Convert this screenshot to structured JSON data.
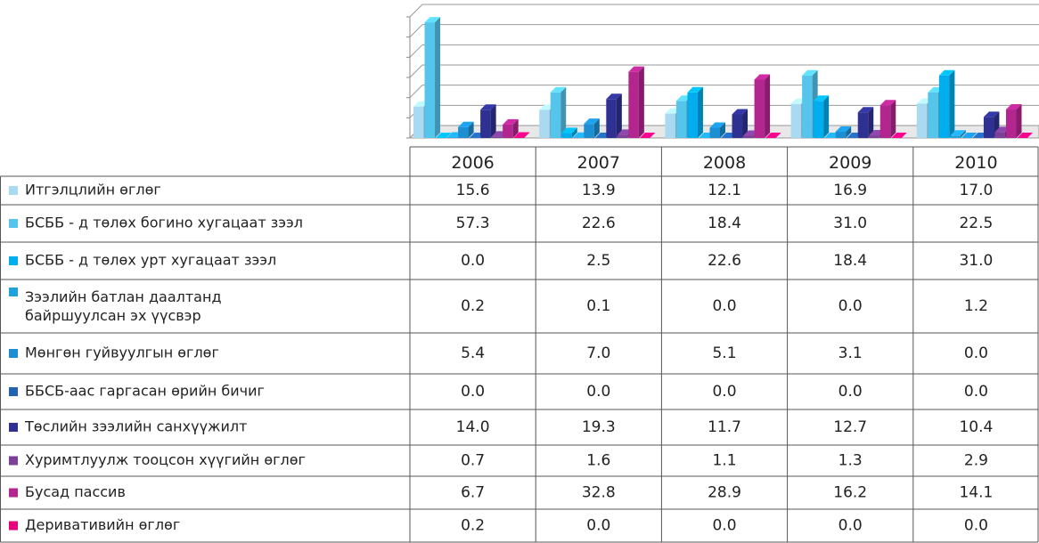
{
  "chart_data": {
    "type": "bar",
    "categories": [
      "2006",
      "2007",
      "2008",
      "2009",
      "2010"
    ],
    "ylim": [
      0,
      60
    ],
    "yticks": [
      0,
      10,
      20,
      30,
      40,
      50,
      60
    ],
    "grid": true,
    "series": [
      {
        "name": "Итгэлцлийн өглөг",
        "color": "#a9daf2",
        "values": [
          15.6,
          13.9,
          12.1,
          16.9,
          17.0
        ],
        "value_labels": [
          "15.6",
          "13.9",
          "12.1",
          "16.9",
          "17.0"
        ]
      },
      {
        "name": "БСББ - д төлөх богино хугацаат зээл",
        "color": "#55c5ec",
        "values": [
          57.3,
          22.6,
          18.4,
          31.0,
          22.5
        ],
        "value_labels": [
          "57.3",
          "22.6",
          "18.4",
          "31.0",
          "22.5"
        ]
      },
      {
        "name": "БСББ - д төлөх урт хугацаат зээл",
        "color": "#00aeef",
        "values": [
          0.0,
          2.5,
          22.6,
          18.4,
          31.0
        ],
        "value_labels": [
          "0.0",
          "2.5",
          "22.6",
          "18.4",
          "31.0"
        ]
      },
      {
        "name": "Зээлийн батлан даалтанд байршуулсан эх үүсвэр",
        "color": "#1ea1dc",
        "values": [
          0.2,
          0.1,
          0.0,
          0.0,
          1.2
        ],
        "value_labels": [
          "0.2",
          "0.1",
          "0.0",
          "0.0",
          "1.2"
        ]
      },
      {
        "name": "Мөнгөн гуйвуулгын өглөг",
        "color": "#1b8fd2",
        "values": [
          5.4,
          7.0,
          5.1,
          3.1,
          0.0
        ],
        "value_labels": [
          "5.4",
          "7.0",
          "5.1",
          "3.1",
          "0.0"
        ]
      },
      {
        "name": "ББСБ-аас гаргасан өрийн бичиг",
        "color": "#2064b2",
        "values": [
          0.0,
          0.0,
          0.0,
          0.0,
          0.0
        ],
        "value_labels": [
          "0.0",
          "0.0",
          "0.0",
          "0.0",
          "0.0"
        ]
      },
      {
        "name": "Төслийн зээлийн санхүүжилт",
        "color": "#2e3192",
        "values": [
          14.0,
          19.3,
          11.7,
          12.7,
          10.4
        ],
        "value_labels": [
          "14.0",
          "19.3",
          "11.7",
          "12.7",
          "10.4"
        ]
      },
      {
        "name": "Хуримтлуулж тооцсон хүүгийн өглөг",
        "color": "#7d3f98",
        "values": [
          0.7,
          1.6,
          1.1,
          1.3,
          2.9
        ],
        "value_labels": [
          "0.7",
          "1.6",
          "1.1",
          "1.3",
          "2.9"
        ]
      },
      {
        "name": "Бусад пассив",
        "color": "#b3258f",
        "values": [
          6.7,
          32.8,
          28.9,
          16.2,
          14.1
        ],
        "value_labels": [
          "6.7",
          "32.8",
          "28.9",
          "16.2",
          "14.1"
        ]
      },
      {
        "name": "Деривативийн өглөг",
        "color": "#e6007e",
        "values": [
          0.2,
          0.0,
          0.0,
          0.0,
          0.0
        ],
        "value_labels": [
          "0.2",
          "0.0",
          "0.0",
          "0.0",
          "0.0"
        ]
      }
    ]
  }
}
